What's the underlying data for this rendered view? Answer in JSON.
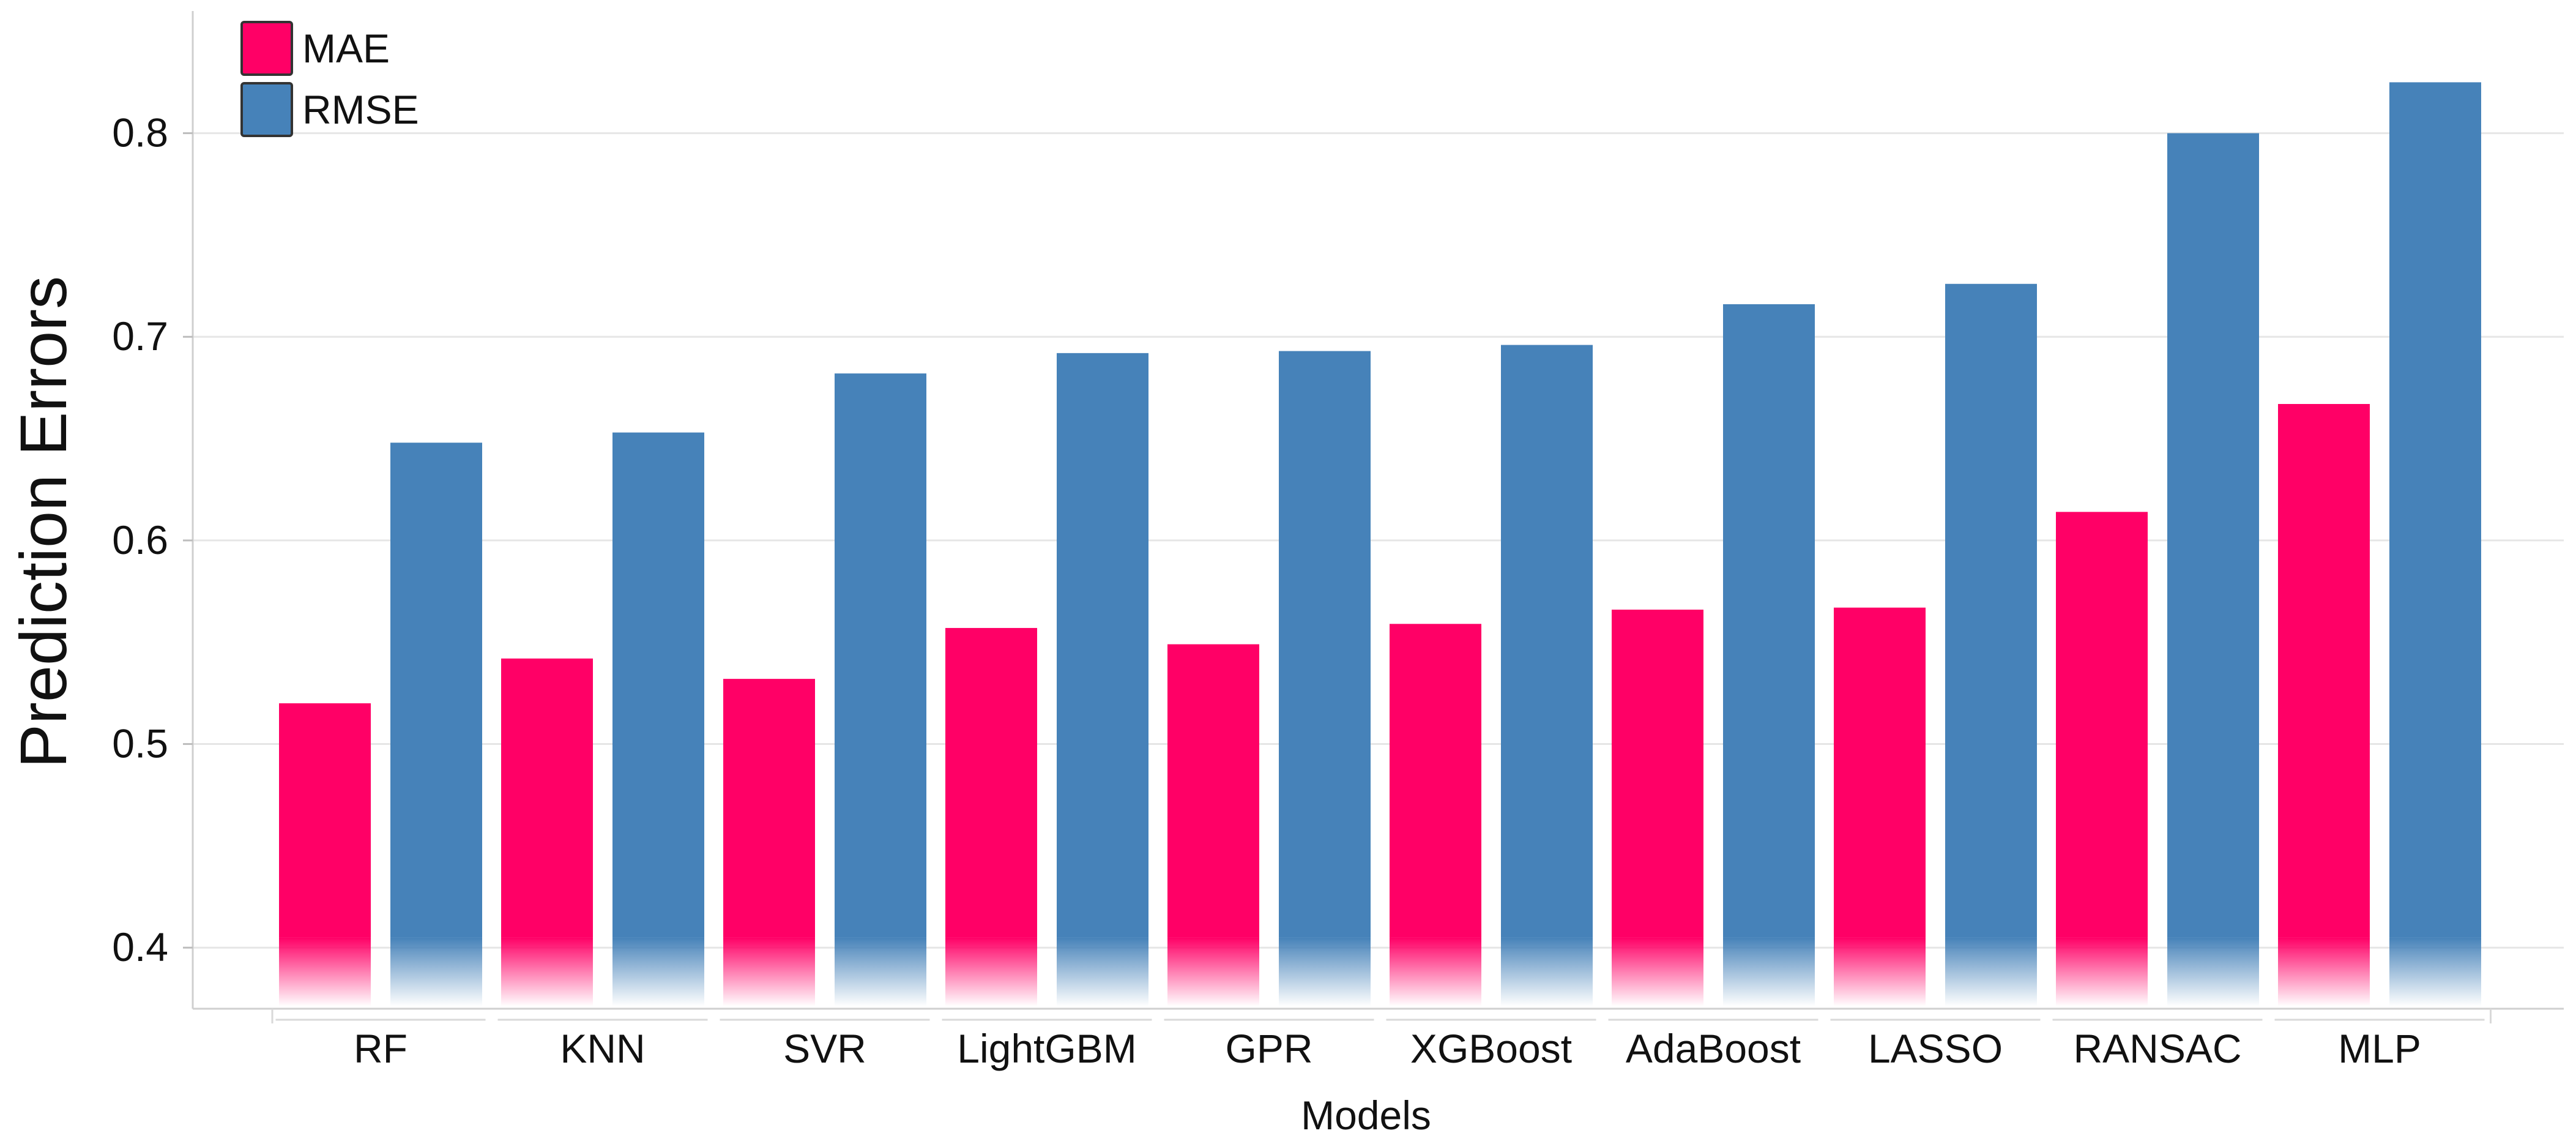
{
  "chart_data": {
    "type": "bar",
    "title": "",
    "xlabel": "Models",
    "ylabel": "Prediction Errors",
    "categories": [
      "RF",
      "KNN",
      "SVR",
      "LightGBM",
      "GPR",
      "XGBoost",
      "AdaBoost",
      "LASSO",
      "RANSAC",
      "MLP"
    ],
    "series": [
      {
        "name": "MAE",
        "color": "#ff0066",
        "values": [
          0.52,
          0.542,
          0.532,
          0.557,
          0.549,
          0.559,
          0.566,
          0.567,
          0.614,
          0.667
        ]
      },
      {
        "name": "RMSE",
        "color": "#4682b9",
        "values": [
          0.648,
          0.653,
          0.682,
          0.692,
          0.693,
          0.696,
          0.716,
          0.726,
          0.8,
          0.825
        ]
      }
    ],
    "ylim": [
      0.37,
      0.86
    ],
    "yticks": [
      "0.4",
      "0.5",
      "0.6",
      "0.7",
      "0.8"
    ],
    "grid": true,
    "legend_position": "top-left"
  }
}
